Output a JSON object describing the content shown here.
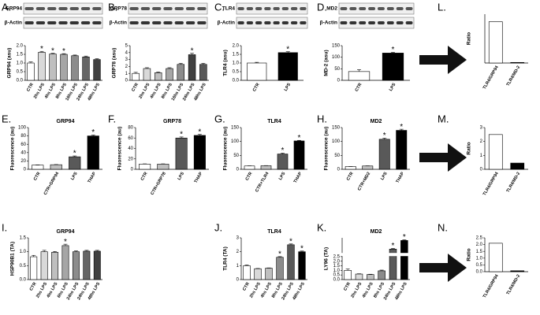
{
  "chart_data": [
    {
      "type": "bar",
      "panel": "A.",
      "blot_labels": [
        "GRP94",
        "β-Actin"
      ],
      "ylabel": "GRP94 (asu)",
      "categories": [
        "CTR",
        "2hs LPS",
        "4hs LPS",
        "8hs LPS",
        "16hs LPS",
        "24hs LPS",
        "48hs LPS"
      ],
      "values": [
        1.0,
        1.62,
        1.52,
        1.5,
        1.42,
        1.35,
        1.2
      ],
      "errors": [
        0.06,
        0.05,
        0.04,
        0.04,
        0.04,
        0.05,
        0.05
      ],
      "colors": [
        "#ffffff",
        "#d9d9d9",
        "#bfbfbf",
        "#a6a6a6",
        "#8c8c8c",
        "#666666",
        "#404040"
      ],
      "significance": [
        null,
        "*",
        "*",
        "*",
        null,
        null,
        null
      ],
      "ylim": [
        0,
        2
      ],
      "yticks": [
        {
          "value": 0,
          "label": "0.0"
        },
        {
          "value": 0.5,
          "label": "0.5"
        },
        {
          "value": 1,
          "label": "1.0"
        },
        {
          "value": 1.5,
          "label": "1.5"
        },
        {
          "value": 2,
          "label": "2.0"
        }
      ]
    },
    {
      "type": "bar",
      "panel": "B.",
      "blot_labels": [
        "GRP78",
        "β-Actin"
      ],
      "ylabel": "GRP78 (asu)",
      "categories": [
        "CTR",
        "2hs LPS",
        "4hs LPS",
        "8hs LPS",
        "16hs LPS",
        "24hs LPS",
        "48hs LPS"
      ],
      "values": [
        1.0,
        1.7,
        1.1,
        1.7,
        2.3,
        3.7,
        2.3
      ],
      "errors": [
        0.15,
        0.12,
        0.1,
        0.12,
        0.15,
        0.2,
        0.15
      ],
      "colors": [
        "#ffffff",
        "#d9d9d9",
        "#bfbfbf",
        "#a6a6a6",
        "#8c8c8c",
        "#404040",
        "#595959"
      ],
      "significance": [
        null,
        null,
        null,
        null,
        null,
        "*",
        null
      ],
      "ylim": [
        0,
        5
      ],
      "yticks": [
        0,
        1,
        2,
        3,
        4,
        5
      ]
    },
    {
      "type": "bar",
      "panel": "C.",
      "blot_labels": [
        "TLR4",
        "β-Actin"
      ],
      "ylabel": "TLR4 (asu)",
      "categories": [
        "CTR",
        "LPS"
      ],
      "values": [
        1.0,
        1.6
      ],
      "errors": [
        0.04,
        0.05
      ],
      "colors": [
        "#ffffff",
        "#000000"
      ],
      "significance": [
        null,
        "*"
      ],
      "ylim": [
        0,
        2
      ],
      "yticks": [
        {
          "value": 0,
          "label": "0.0"
        },
        {
          "value": 0.5,
          "label": "0.5"
        },
        {
          "value": 1,
          "label": "1.0"
        },
        {
          "value": 1.5,
          "label": "1.5"
        },
        {
          "value": 2,
          "label": "2.0"
        }
      ]
    },
    {
      "type": "bar",
      "panel": "D.",
      "blot_labels": [
        "MD2",
        "β-Actin"
      ],
      "ylabel": "MD-2 (asu)",
      "categories": [
        "CTR",
        "LPS"
      ],
      "values": [
        38,
        118
      ],
      "errors": [
        8,
        3
      ],
      "colors": [
        "#ffffff",
        "#000000"
      ],
      "significance": [
        null,
        "*"
      ],
      "ylim": [
        0,
        150
      ],
      "yticks": [
        0,
        50,
        100,
        150
      ]
    },
    {
      "type": "bar",
      "panel": "L.",
      "ylabel": "Ratio",
      "categories": [
        "TLR4/GRP94",
        "TLR4/MD-2"
      ],
      "values": [
        1.1,
        0.015
      ],
      "colors": [
        "#ffffff",
        "#000000"
      ],
      "ylim": [
        0,
        1.3
      ]
    },
    {
      "type": "bar",
      "panel": "E.",
      "title": "GRP94",
      "ylabel": "Fluorescence (au)",
      "categories": [
        "CTR",
        "CTR+GRP94",
        "LPS",
        "THAP"
      ],
      "values": [
        10,
        11,
        30,
        80
      ],
      "errors": [
        0.5,
        0.5,
        2,
        2
      ],
      "colors": [
        "#ffffff",
        "#bfbfbf",
        "#595959",
        "#000000"
      ],
      "significance": [
        null,
        null,
        "*",
        "*"
      ],
      "ylim": [
        0,
        100
      ],
      "yticks": [
        0,
        20,
        40,
        60,
        80,
        100
      ]
    },
    {
      "type": "bar",
      "panel": "F.",
      "title": "GRP78",
      "ylabel": "Fluorescence (au)",
      "categories": [
        "CTR",
        "CTR+GRP78",
        "LPS",
        "THAP"
      ],
      "values": [
        10,
        10,
        60,
        65
      ],
      "errors": [
        0.5,
        0.5,
        2,
        2
      ],
      "colors": [
        "#ffffff",
        "#bfbfbf",
        "#595959",
        "#000000"
      ],
      "significance": [
        null,
        null,
        "*",
        "*"
      ],
      "ylim": [
        0,
        80
      ],
      "yticks": [
        0,
        20,
        40,
        60,
        80
      ]
    },
    {
      "type": "bar",
      "panel": "G.",
      "title": "TLR4",
      "ylabel": "Fluorescence (au)",
      "categories": [
        "CTR",
        "CTR+TLR4",
        "LPS",
        "THAP"
      ],
      "values": [
        12,
        13,
        55,
        102
      ],
      "errors": [
        0.5,
        0.5,
        3,
        2
      ],
      "colors": [
        "#ffffff",
        "#bfbfbf",
        "#595959",
        "#000000"
      ],
      "significance": [
        null,
        null,
        "*",
        "*"
      ],
      "ylim": [
        0,
        150
      ],
      "yticks": [
        0,
        50,
        100,
        150
      ]
    },
    {
      "type": "bar",
      "panel": "H.",
      "title": "MD2",
      "ylabel": "Fluorescence (au)",
      "categories": [
        "CTR",
        "CTR+MD2",
        "LPS",
        "THAP"
      ],
      "values": [
        10,
        12,
        108,
        140
      ],
      "errors": [
        0.5,
        0.5,
        4,
        4
      ],
      "colors": [
        "#ffffff",
        "#bfbfbf",
        "#595959",
        "#000000"
      ],
      "significance": [
        null,
        null,
        "*",
        "*"
      ],
      "ylim": [
        0,
        150
      ],
      "yticks": [
        0,
        50,
        100,
        150
      ]
    },
    {
      "type": "bar",
      "panel": "M.",
      "ylabel": "Ratio",
      "categories": [
        "TLR4/GRP94",
        "TLR4/MD-2"
      ],
      "values": [
        2.5,
        0.45
      ],
      "colors": [
        "#ffffff",
        "#000000"
      ],
      "ylim": [
        0,
        3
      ],
      "yticks": [
        0,
        1,
        2,
        3
      ]
    },
    {
      "type": "bar",
      "panel": "I.",
      "title": "GRP94",
      "ylabel": "HSP90B1 (TA)",
      "categories": [
        "CTR",
        "2hs LPS",
        "4hs LPS",
        "6hs LPS",
        "24hs LPS",
        "24hs LPS",
        "48hs LPS"
      ],
      "values": [
        0.82,
        1.0,
        0.98,
        1.22,
        1.0,
        1.02,
        1.02
      ],
      "errors": [
        0.05,
        0.05,
        0.03,
        0.05,
        0.03,
        0.03,
        0.03
      ],
      "colors": [
        "#ffffff",
        "#d9d9d9",
        "#bfbfbf",
        "#a6a6a6",
        "#8c8c8c",
        "#666666",
        "#404040"
      ],
      "significance": [
        null,
        null,
        null,
        "*",
        null,
        null,
        null
      ],
      "ylim": [
        0,
        1.5
      ],
      "yticks": [
        {
          "value": 0,
          "label": "0.0"
        },
        {
          "value": 0.5,
          "label": "0.5"
        },
        {
          "value": 1,
          "label": "1.0"
        },
        {
          "value": 1.5,
          "label": "1.5"
        }
      ]
    },
    {
      "type": "bar",
      "panel": "J.",
      "title": "TLR4",
      "ylabel": "TLR4 (TA)",
      "categories": [
        "CTR",
        "2hs LPS",
        "4hs LPS",
        "8hs LPS",
        "24hs LPS",
        "48hs LPS"
      ],
      "values": [
        1.0,
        0.78,
        0.82,
        1.6,
        2.5,
        2.0
      ],
      "errors": [
        0.05,
        0.02,
        0.02,
        0.05,
        0.06,
        0.05
      ],
      "colors": [
        "#ffffff",
        "#d9d9d9",
        "#bfbfbf",
        "#8c8c8c",
        "#595959",
        "#000000"
      ],
      "significance": [
        null,
        null,
        null,
        "*",
        "*",
        "*"
      ],
      "ylim": [
        0,
        3
      ],
      "yticks": [
        0,
        1,
        2,
        3
      ]
    },
    {
      "type": "bar",
      "panel": "K.",
      "title": "MD2",
      "ylabel": "LY96 (TA)",
      "categories": [
        "CTR",
        "2hs LPS",
        "4hs LPS",
        "8hs LPS",
        "24hs LPS",
        "48hs LPS"
      ],
      "values": [
        1.0,
        0.6,
        0.55,
        0.95,
        15,
        28
      ],
      "errors": [
        0.15,
        0.03,
        0.03,
        0.08,
        1,
        1
      ],
      "colors": [
        "#ffffff",
        "#d9d9d9",
        "#bfbfbf",
        "#8c8c8c",
        "#595959",
        "#000000"
      ],
      "significance": [
        null,
        null,
        null,
        null,
        "*",
        "*"
      ],
      "ylim": [
        0,
        32
      ],
      "axis_break": [
        2.5,
        10
      ],
      "yticks": [
        {
          "value": 0,
          "label": "0.0"
        },
        {
          "value": 0.5,
          "label": "0.5"
        },
        {
          "value": 1,
          "label": "1.0"
        },
        {
          "value": 1.5,
          "label": "1.5"
        },
        {
          "value": 2,
          "label": "2.0"
        },
        {
          "value": 2.5,
          "label": "2.5"
        }
      ]
    },
    {
      "type": "bar",
      "panel": "N.",
      "ylabel": "Ratio",
      "categories": [
        "TLR4/GRP94",
        "TLR4/MD-2"
      ],
      "values": [
        2.1,
        0.07
      ],
      "colors": [
        "#ffffff",
        "#000000"
      ],
      "ylim": [
        0,
        2.5
      ],
      "yticks": [
        {
          "value": 0,
          "label": "0.0"
        },
        {
          "value": 0.5,
          "label": "0.5"
        },
        {
          "value": 1,
          "label": "1.0"
        },
        {
          "value": 1.5,
          "label": "1.5"
        },
        {
          "value": 2,
          "label": "2.0"
        },
        {
          "value": 2.5,
          "label": "2.5"
        }
      ]
    }
  ]
}
